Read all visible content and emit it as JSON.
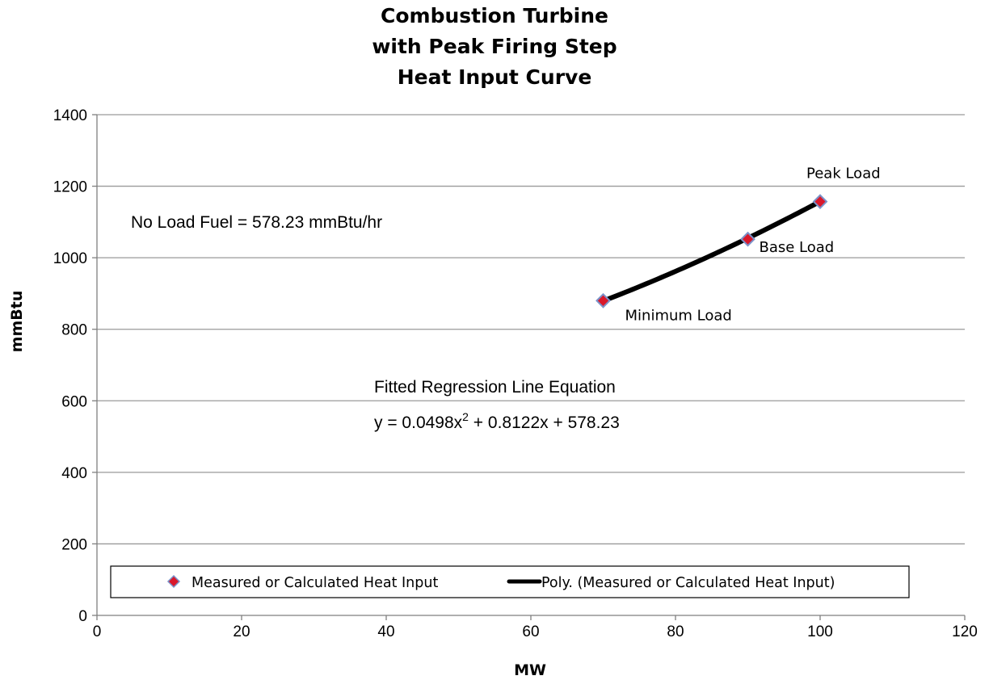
{
  "chart_data": {
    "type": "scatter",
    "title_lines": [
      "Combustion Turbine",
      "with Peak Firing Step",
      "Heat Input Curve"
    ],
    "xlabel": "MW",
    "ylabel": "mmBtu",
    "xlim": [
      0,
      120
    ],
    "ylim": [
      0,
      1400
    ],
    "x_ticks": [
      0,
      20,
      40,
      60,
      80,
      100,
      120
    ],
    "y_ticks": [
      0,
      200,
      400,
      600,
      800,
      1000,
      1200,
      1400
    ],
    "grid": "horizontal",
    "legend_position": "bottom",
    "series": [
      {
        "name": "Measured or Calculated Heat Input",
        "type": "scatter",
        "marker": "diamond",
        "marker_fill": "#d9182b",
        "marker_edge": "#7b92c9",
        "x": [
          70,
          90,
          100
        ],
        "y": [
          880,
          1052,
          1157
        ],
        "point_labels": [
          "Minimum Load",
          "Base Load",
          "Peak Load"
        ]
      },
      {
        "name": "Poly. (Measured or Calculated Heat Input)",
        "type": "line",
        "color": "#000000",
        "fit": {
          "a2": 0.0498,
          "a1": 0.8122,
          "a0": 578.23
        },
        "x_range": [
          70,
          100
        ]
      }
    ],
    "annotations": {
      "no_load": "No Load Fuel = 578.23 mmBtu/hr",
      "equation_title": "Fitted Regression Line Equation",
      "equation_prefix": "y = 0.0498x",
      "equation_exp": "2",
      "equation_suffix": " + 0.8122x + 578.23"
    }
  }
}
